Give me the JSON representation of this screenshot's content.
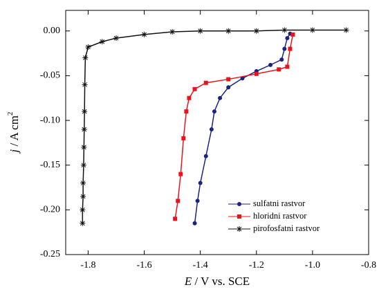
{
  "chart_data": {
    "type": "line",
    "x_label_parts": [
      "E",
      " / V vs. SCE"
    ],
    "y_label_parts": [
      "j",
      " / A cm",
      "2"
    ],
    "xlim": [
      -1.88,
      -0.8
    ],
    "ylim": [
      -0.25,
      0.023
    ],
    "xticks": [
      -1.8,
      -1.6,
      -1.4,
      -1.2,
      {
        "value": -1.0,
        "label": "-1.0"
      },
      -0.8
    ],
    "yticks": [
      {
        "value": 0,
        "label": "0.00"
      },
      {
        "value": -0.05,
        "label": "-0.05"
      },
      {
        "value": -0.1,
        "label": "-0.10"
      },
      {
        "value": -0.15,
        "label": "-0.15"
      },
      {
        "value": -0.2,
        "label": "-0.20"
      },
      {
        "value": -0.25,
        "label": "-0.25"
      }
    ],
    "legend": "lower right",
    "series": [
      {
        "name": "sulfatni rastvor",
        "color": "#1a237e",
        "marker": "circle",
        "x": [
          -1.42,
          -1.41,
          -1.4,
          -1.38,
          -1.36,
          -1.35,
          -1.33,
          -1.3,
          -1.25,
          -1.2,
          -1.15,
          -1.11,
          -1.1,
          -1.09,
          -1.08
        ],
        "values": [
          -0.215,
          -0.19,
          -0.17,
          -0.14,
          -0.11,
          -0.09,
          -0.075,
          -0.063,
          -0.053,
          -0.045,
          -0.038,
          -0.032,
          -0.02,
          -0.008,
          -0.003
        ]
      },
      {
        "name": "hloridni rastvor",
        "color": "#e8141c",
        "marker": "square",
        "x": [
          -1.49,
          -1.48,
          -1.47,
          -1.46,
          -1.45,
          -1.44,
          -1.42,
          -1.38,
          -1.3,
          -1.2,
          -1.12,
          -1.09,
          -1.08,
          -1.07
        ],
        "values": [
          -0.21,
          -0.19,
          -0.16,
          -0.12,
          -0.09,
          -0.075,
          -0.065,
          -0.058,
          -0.054,
          -0.048,
          -0.043,
          -0.04,
          -0.02,
          -0.004
        ]
      },
      {
        "name": "pirofosfatni rastvor",
        "color": "#111111",
        "marker": "asterisk",
        "x": [
          -1.82,
          -1.82,
          -1.818,
          -1.818,
          -1.816,
          -1.815,
          -1.814,
          -1.813,
          -1.812,
          -1.81,
          -1.8,
          -1.75,
          -1.7,
          -1.6,
          -1.5,
          -1.4,
          -1.3,
          -1.2,
          -1.1,
          -1.0,
          -0.88
        ],
        "values": [
          -0.215,
          -0.2,
          -0.185,
          -0.17,
          -0.15,
          -0.13,
          -0.11,
          -0.09,
          -0.06,
          -0.03,
          -0.018,
          -0.012,
          -0.008,
          -0.004,
          -0.001,
          0,
          0,
          0,
          0.001,
          0.001,
          0.001
        ]
      }
    ]
  }
}
